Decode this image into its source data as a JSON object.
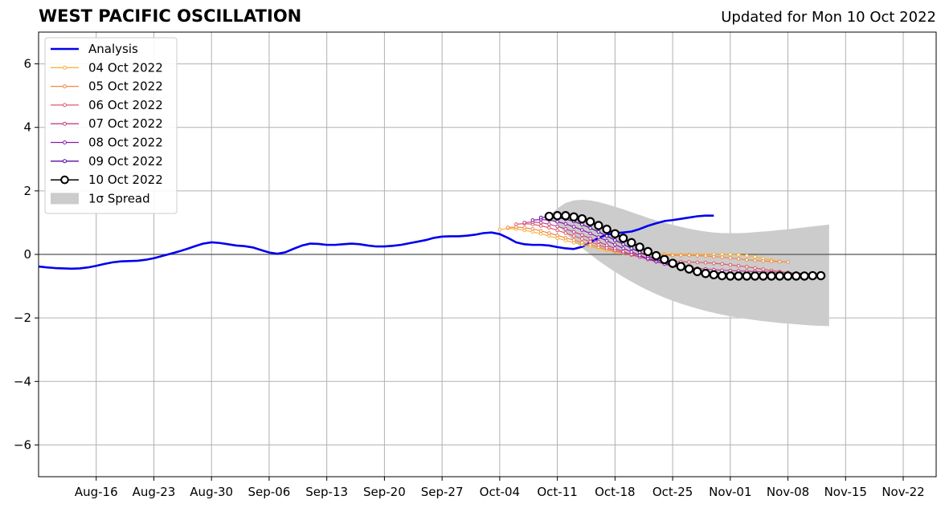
{
  "header": {
    "title": "WEST PACIFIC OSCILLATION",
    "updated": "Updated for Mon 10 Oct 2022"
  },
  "chart_data": {
    "type": "line",
    "title": "WEST PACIFIC OSCILLATION",
    "subtitle": "Updated for Mon 10 Oct 2022",
    "xlabel": "",
    "ylabel": "",
    "x_start_date": "2022-08-09",
    "xlim": [
      "2022-08-09",
      "2022-11-26"
    ],
    "ylim": [
      -7,
      7
    ],
    "yticks": [
      -6,
      -4,
      -2,
      0,
      2,
      4,
      6
    ],
    "ytick_labels": [
      "−6",
      "−4",
      "−2",
      "0",
      "2",
      "4",
      "6"
    ],
    "xticks": [
      "2022-08-16",
      "2022-08-23",
      "2022-08-30",
      "2022-09-06",
      "2022-09-13",
      "2022-09-20",
      "2022-09-27",
      "2022-10-04",
      "2022-10-11",
      "2022-10-18",
      "2022-10-25",
      "2022-11-01",
      "2022-11-08",
      "2022-11-15",
      "2022-11-22"
    ],
    "xtick_labels": [
      "Aug-16",
      "Aug-23",
      "Aug-30",
      "Sep-06",
      "Sep-13",
      "Sep-20",
      "Sep-27",
      "Oct-04",
      "Oct-11",
      "Oct-18",
      "Oct-25",
      "Nov-01",
      "Nov-08",
      "Nov-15",
      "Nov-22"
    ],
    "grid": true,
    "legend_position": "top-left",
    "legend_entries": [
      "Analysis",
      "04 Oct 2022",
      "05 Oct 2022",
      "06 Oct 2022",
      "07 Oct 2022",
      "08 Oct 2022",
      "09 Oct 2022",
      "10 Oct 2022",
      "1σ Spread"
    ],
    "analysis": {
      "name": "Analysis",
      "color": "#0000ee",
      "start": "2022-08-09",
      "values": [
        -0.38,
        -0.41,
        -0.43,
        -0.44,
        -0.45,
        -0.44,
        -0.41,
        -0.36,
        -0.3,
        -0.25,
        -0.22,
        -0.21,
        -0.2,
        -0.17,
        -0.12,
        -0.05,
        0.02,
        0.09,
        0.17,
        0.26,
        0.34,
        0.38,
        0.36,
        0.32,
        0.28,
        0.26,
        0.22,
        0.14,
        0.06,
        0.02,
        0.07,
        0.18,
        0.28,
        0.34,
        0.33,
        0.3,
        0.3,
        0.32,
        0.34,
        0.32,
        0.28,
        0.25,
        0.25,
        0.27,
        0.3,
        0.35,
        0.4,
        0.45,
        0.52,
        0.56,
        0.57,
        0.57,
        0.59,
        0.62,
        0.67,
        0.69,
        0.64,
        0.52,
        0.38,
        0.32,
        0.3,
        0.3,
        0.28,
        0.23,
        0.19,
        0.17,
        0.24,
        0.38,
        0.52,
        0.62,
        0.67,
        0.69,
        0.72,
        0.8,
        0.9,
        0.98,
        1.05,
        1.08,
        1.12,
        1.16,
        1.2,
        1.22,
        1.22
      ]
    },
    "spread": {
      "name": "1σ Spread",
      "color": "#cccccc",
      "start": "2022-10-10",
      "upper": [
        1.2,
        1.45,
        1.62,
        1.7,
        1.72,
        1.7,
        1.65,
        1.58,
        1.5,
        1.42,
        1.33,
        1.24,
        1.15,
        1.07,
        1.0,
        0.93,
        0.87,
        0.81,
        0.76,
        0.72,
        0.69,
        0.67,
        0.67,
        0.67,
        0.68,
        0.7,
        0.72,
        0.74,
        0.77,
        0.79,
        0.82,
        0.85,
        0.88,
        0.91,
        0.94
      ],
      "lower": [
        1.2,
        0.92,
        0.67,
        0.42,
        0.2,
        0.0,
        -0.2,
        -0.38,
        -0.55,
        -0.71,
        -0.86,
        -1.0,
        -1.13,
        -1.25,
        -1.36,
        -1.46,
        -1.55,
        -1.63,
        -1.71,
        -1.78,
        -1.84,
        -1.9,
        -1.95,
        -1.99,
        -2.03,
        -2.07,
        -2.1,
        -2.13,
        -2.16,
        -2.18,
        -2.2,
        -2.22,
        -2.24,
        -2.25,
        -2.26
      ]
    },
    "forecasts": [
      {
        "name": "04 Oct 2022",
        "color": "#f5b342",
        "start": "2022-10-04",
        "values": [
          0.78,
          0.82,
          0.8,
          0.76,
          0.71,
          0.65,
          0.58,
          0.51,
          0.44,
          0.37,
          0.31,
          0.25,
          0.19,
          0.13,
          0.08,
          0.04,
          0.02,
          0.01,
          0.01,
          0.01,
          0.01,
          0.01,
          0.0,
          0.0,
          0.0,
          0.0,
          0.0,
          0.0,
          0.0,
          -0.01,
          -0.04,
          -0.08,
          -0.13,
          -0.18,
          -0.22
        ]
      },
      {
        "name": "05 Oct 2022",
        "color": "#f08a44",
        "start": "2022-10-05",
        "values": [
          0.85,
          0.86,
          0.84,
          0.8,
          0.74,
          0.67,
          0.6,
          0.52,
          0.45,
          0.37,
          0.3,
          0.23,
          0.16,
          0.1,
          0.05,
          0.02,
          0.0,
          -0.01,
          -0.02,
          -0.02,
          -0.03,
          -0.03,
          -0.03,
          -0.04,
          -0.05,
          -0.07,
          -0.09,
          -0.11,
          -0.14,
          -0.17,
          -0.19,
          -0.21,
          -0.22,
          -0.23,
          -0.24
        ]
      },
      {
        "name": "06 Oct 2022",
        "color": "#e05a6a",
        "start": "2022-10-06",
        "values": [
          0.95,
          0.97,
          0.95,
          0.9,
          0.84,
          0.76,
          0.67,
          0.58,
          0.49,
          0.4,
          0.3,
          0.21,
          0.13,
          0.05,
          -0.02,
          -0.08,
          -0.13,
          -0.17,
          -0.2,
          -0.22,
          -0.23,
          -0.24,
          -0.25,
          -0.26,
          -0.28,
          -0.3,
          -0.33,
          -0.36,
          -0.39,
          -0.43,
          -0.47,
          -0.51,
          -0.54,
          -0.57,
          -0.59
        ]
      },
      {
        "name": "07 Oct 2022",
        "color": "#c0408a",
        "start": "2022-10-07",
        "values": [
          1.0,
          1.02,
          1.0,
          0.95,
          0.88,
          0.8,
          0.71,
          0.61,
          0.5,
          0.4,
          0.29,
          0.19,
          0.09,
          0.0,
          -0.08,
          -0.16,
          -0.23,
          -0.29,
          -0.34,
          -0.38,
          -0.41,
          -0.44,
          -0.46,
          -0.48,
          -0.5,
          -0.51,
          -0.52,
          -0.53,
          -0.54,
          -0.55,
          -0.56,
          -0.57,
          -0.58,
          -0.59,
          -0.6
        ]
      },
      {
        "name": "08 Oct 2022",
        "color": "#8a1aa8",
        "start": "2022-10-08",
        "values": [
          1.08,
          1.1,
          1.08,
          1.03,
          0.96,
          0.87,
          0.77,
          0.66,
          0.54,
          0.43,
          0.31,
          0.19,
          0.08,
          -0.03,
          -0.13,
          -0.22,
          -0.3,
          -0.37,
          -0.43,
          -0.48,
          -0.52,
          -0.55,
          -0.57,
          -0.59,
          -0.6,
          -0.61,
          -0.62,
          -0.63,
          -0.63,
          -0.64,
          -0.64,
          -0.65,
          -0.65,
          -0.65,
          -0.65
        ]
      },
      {
        "name": "09 Oct 2022",
        "color": "#5a0aa0",
        "start": "2022-10-09",
        "values": [
          1.16,
          1.18,
          1.16,
          1.11,
          1.04,
          0.94,
          0.83,
          0.71,
          0.58,
          0.45,
          0.32,
          0.19,
          0.07,
          -0.05,
          -0.16,
          -0.25,
          -0.34,
          -0.41,
          -0.47,
          -0.52,
          -0.56,
          -0.59,
          -0.61,
          -0.63,
          -0.64,
          -0.65,
          -0.66,
          -0.66,
          -0.66,
          -0.67,
          -0.67,
          -0.67,
          -0.67,
          -0.67,
          -0.67
        ]
      },
      {
        "name": "10 Oct 2022",
        "color": "#000000",
        "marker": "open-circle",
        "start": "2022-10-10",
        "values": [
          1.2,
          1.22,
          1.22,
          1.18,
          1.12,
          1.03,
          0.91,
          0.79,
          0.65,
          0.51,
          0.37,
          0.23,
          0.09,
          -0.04,
          -0.16,
          -0.28,
          -0.38,
          -0.46,
          -0.54,
          -0.6,
          -0.64,
          -0.67,
          -0.68,
          -0.68,
          -0.68,
          -0.68,
          -0.68,
          -0.68,
          -0.68,
          -0.68,
          -0.68,
          -0.68,
          -0.67,
          -0.67
        ]
      }
    ]
  }
}
